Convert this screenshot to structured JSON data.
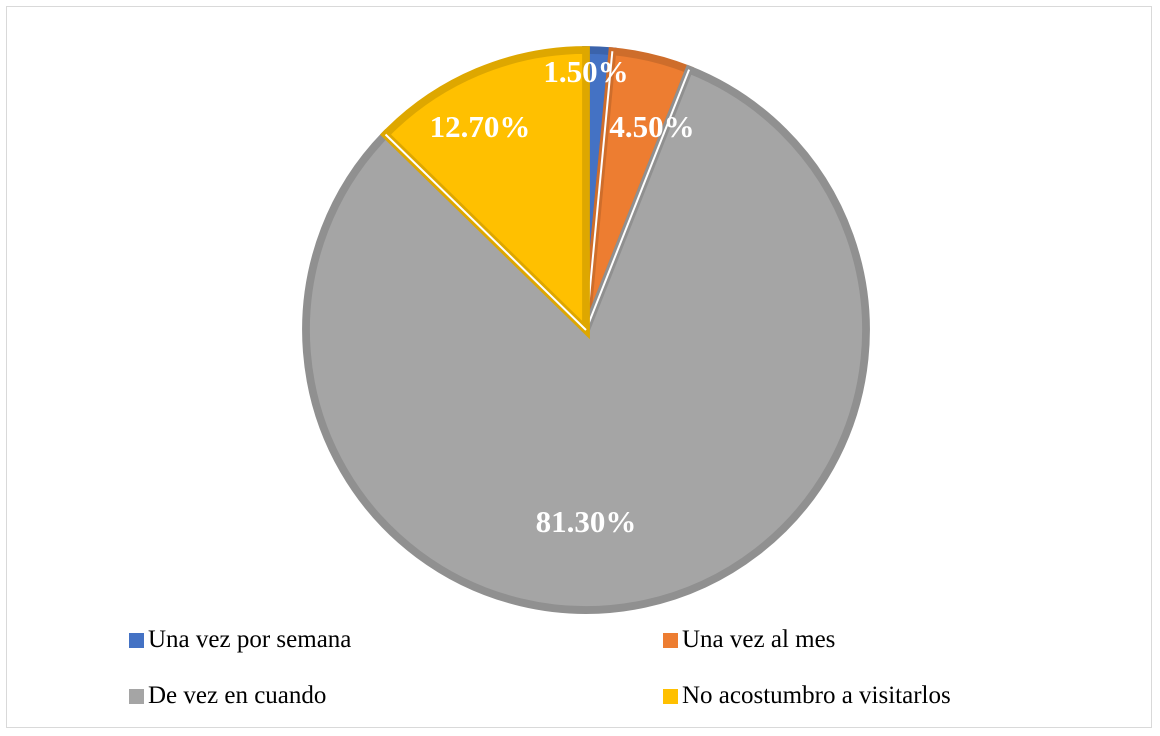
{
  "chart_data": {
    "type": "pie",
    "title": "",
    "legend_position": "bottom",
    "slices": [
      {
        "name": "Una vez por semana",
        "value": 1.5,
        "label": "1.50%",
        "color": "#4472c4"
      },
      {
        "name": "Una vez al mes",
        "value": 4.5,
        "label": "4.50%",
        "color": "#ed7d31"
      },
      {
        "name": "De vez en cuando",
        "value": 81.3,
        "label": "81.30%",
        "color": "#a5a5a5"
      },
      {
        "name": "No acostumbro a visitarlos",
        "value": 12.7,
        "label": "12.70%",
        "color": "#ffc000"
      }
    ]
  }
}
